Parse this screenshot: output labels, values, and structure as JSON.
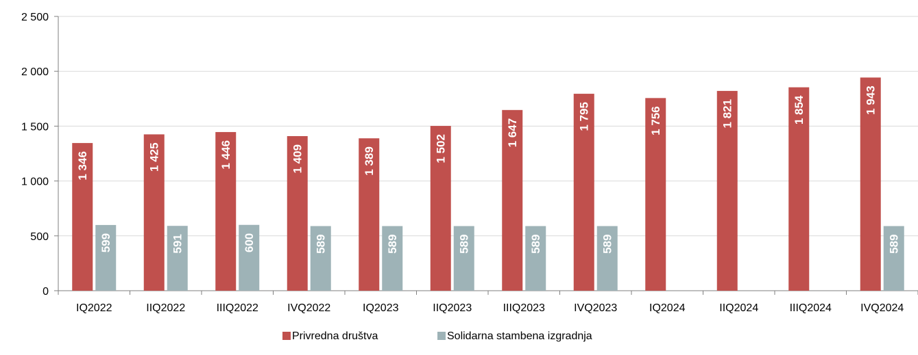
{
  "chart_data": {
    "type": "bar",
    "categories": [
      "IQ2022",
      "IIQ2022",
      "IIIQ2022",
      "IVQ2022",
      "IQ2023",
      "IIQ2023",
      "IIIQ2023",
      "IVQ2023",
      "IQ2024",
      "IIQ2024",
      "IIIQ2024",
      "IVQ2024"
    ],
    "series": [
      {
        "name": "Privredna društva",
        "color": "#c0504d",
        "values": [
          1346,
          1425,
          1446,
          1409,
          1389,
          1502,
          1647,
          1795,
          1756,
          1821,
          1854,
          1943
        ],
        "labels": [
          "1 346",
          "1 425",
          "1 446",
          "1 409",
          "1 389",
          "1 502",
          "1 647",
          "1 795",
          "1 756",
          "1 821",
          "1 854",
          "1 943"
        ]
      },
      {
        "name": "Solidarna stambena izgradnja",
        "color": "#9eb3b7",
        "values": [
          599,
          591,
          600,
          589,
          589,
          589,
          589,
          589,
          null,
          null,
          null,
          589
        ],
        "labels": [
          "599",
          "591",
          "600",
          "589",
          "589",
          "589",
          "589",
          "589",
          "",
          "",
          "",
          "589"
        ]
      }
    ],
    "yticks": [
      0,
      500,
      1000,
      1500,
      2000,
      2500
    ],
    "ytick_labels": [
      "0",
      "500",
      "1 000",
      "1 500",
      "2 000",
      "2 500"
    ],
    "ylim": [
      0,
      2500
    ],
    "grid": true,
    "legend_position": "bottom-center",
    "title": "",
    "xlabel": "",
    "ylabel": ""
  }
}
